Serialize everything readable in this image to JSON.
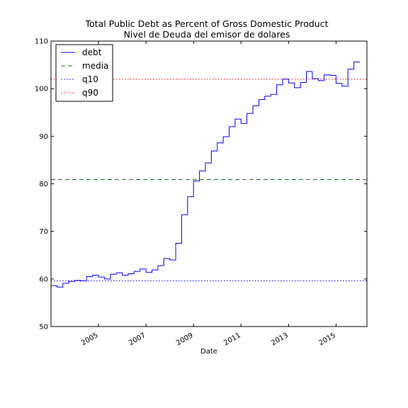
{
  "chart_data": {
    "type": "line",
    "title": "Total Public Debt as Percent of Gross Domestic Product",
    "subtitle": "Nivel de Deuda del emisor de dolares",
    "xlabel": "Date",
    "ylabel": "",
    "xlim": [
      2003.0,
      2016.3
    ],
    "ylim": [
      50,
      110
    ],
    "yticks": [
      50,
      60,
      70,
      80,
      90,
      100,
      110
    ],
    "xticks": [
      2005,
      2007,
      2009,
      2011,
      2013,
      2015
    ],
    "grid": false,
    "legend_position": "top-left",
    "series": [
      {
        "name": "debt",
        "style": "step",
        "color": "#0000ff",
        "x": [
          2003.0,
          2003.25,
          2003.5,
          2003.75,
          2004.0,
          2004.25,
          2004.5,
          2004.75,
          2005.0,
          2005.25,
          2005.5,
          2005.75,
          2006.0,
          2006.25,
          2006.5,
          2006.75,
          2007.0,
          2007.25,
          2007.5,
          2007.75,
          2008.0,
          2008.25,
          2008.5,
          2008.75,
          2009.0,
          2009.25,
          2009.5,
          2009.75,
          2010.0,
          2010.25,
          2010.5,
          2010.75,
          2011.0,
          2011.25,
          2011.5,
          2011.75,
          2012.0,
          2012.25,
          2012.5,
          2012.75,
          2013.0,
          2013.25,
          2013.5,
          2013.75,
          2014.0,
          2014.25,
          2014.5,
          2014.75,
          2015.0,
          2015.25,
          2015.5,
          2015.75,
          2016.0
        ],
        "y": [
          58.6,
          58.3,
          59.1,
          59.5,
          59.7,
          59.6,
          60.5,
          60.8,
          60.4,
          60.0,
          61.0,
          61.3,
          60.8,
          61.1,
          61.6,
          62.1,
          61.4,
          61.9,
          62.8,
          64.3,
          64.0,
          67.5,
          73.5,
          77.3,
          80.6,
          82.7,
          84.4,
          86.9,
          88.6,
          89.9,
          92.0,
          93.6,
          92.7,
          94.8,
          96.4,
          97.7,
          98.4,
          98.8,
          100.8,
          102.0,
          101.2,
          100.2,
          101.3,
          103.6,
          102.1,
          101.7,
          102.9,
          102.8,
          101.1,
          100.5,
          104.1,
          105.6,
          105.6
        ]
      },
      {
        "name": "media",
        "style": "dashed",
        "color": "#008000",
        "value": 80.9
      },
      {
        "name": "q10",
        "style": "dotted",
        "color": "#0000ff",
        "value": 59.6
      },
      {
        "name": "q90",
        "style": "dotted",
        "color": "#ff0000",
        "value": 102.0
      }
    ]
  }
}
